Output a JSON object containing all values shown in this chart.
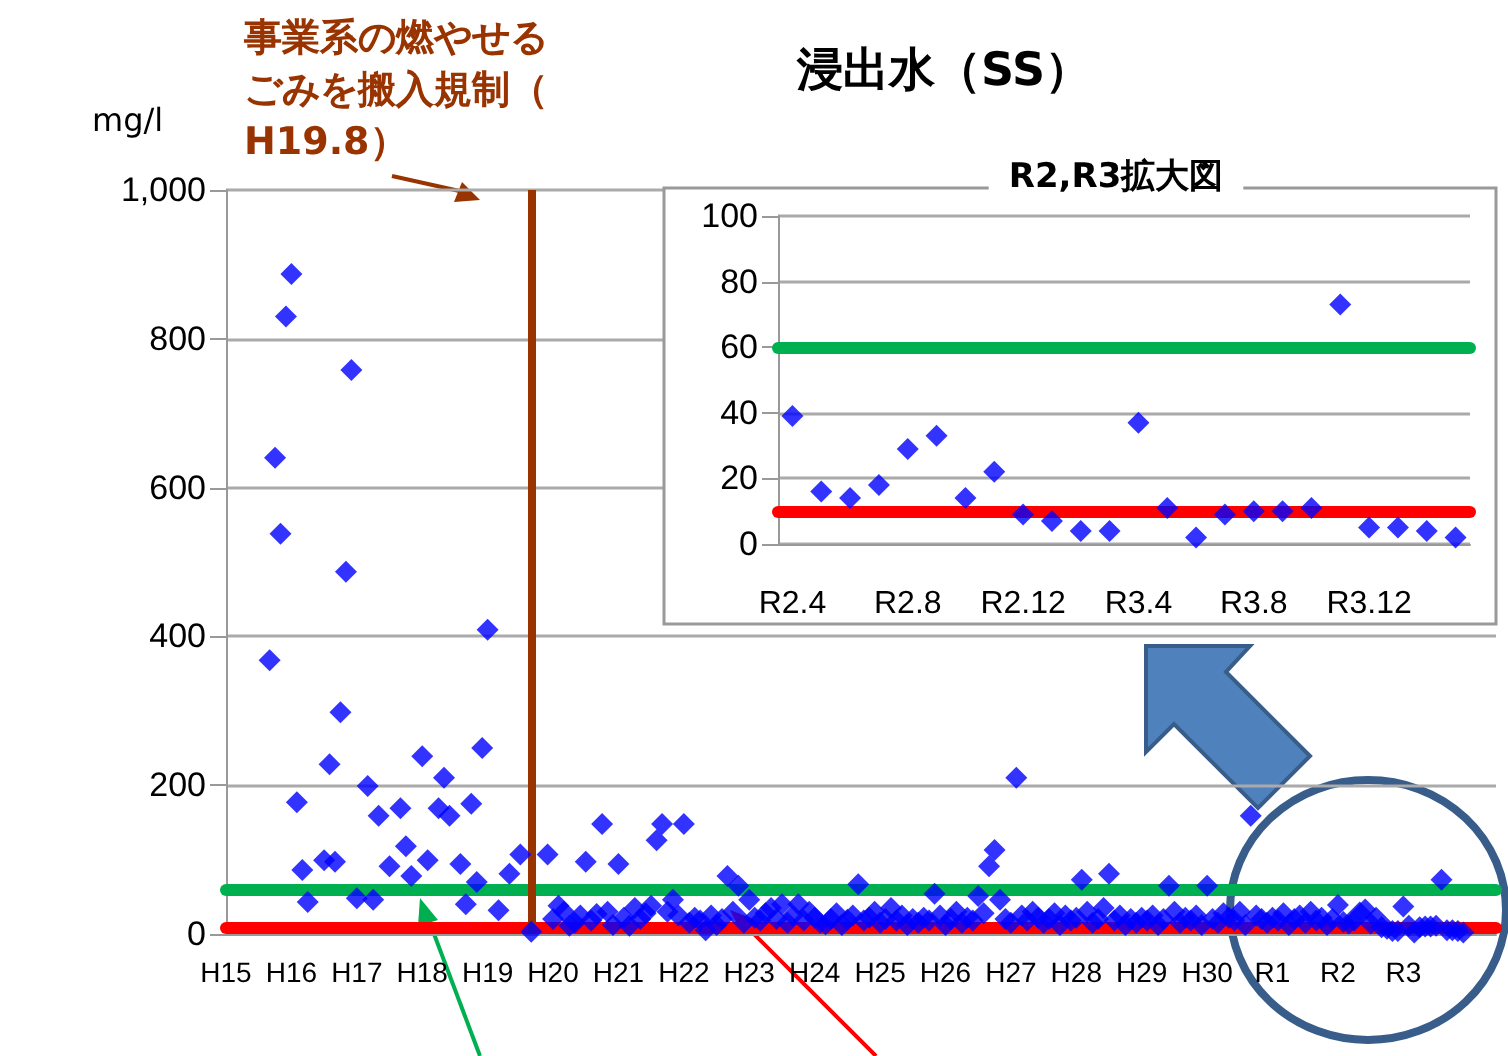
{
  "chart_data": [
    {
      "type": "scatter",
      "title": "浸出水（SS）",
      "ylabel": "mg/l",
      "marker": "diamond",
      "grid": "y",
      "categories": [
        "H15",
        null,
        null,
        null,
        null,
        null,
        null,
        null,
        null,
        null,
        null,
        null,
        "H16",
        null,
        null,
        null,
        null,
        null,
        null,
        null,
        null,
        null,
        null,
        null,
        "H17",
        null,
        null,
        null,
        null,
        null,
        null,
        null,
        null,
        null,
        null,
        null,
        "H18",
        null,
        null,
        null,
        null,
        null,
        null,
        null,
        null,
        null,
        null,
        null,
        "H19",
        null,
        null,
        null,
        null,
        null,
        null,
        null,
        null,
        null,
        null,
        null,
        "H20",
        null,
        null,
        null,
        null,
        null,
        null,
        null,
        null,
        null,
        null,
        null,
        "H21",
        null,
        null,
        null,
        null,
        null,
        null,
        null,
        null,
        null,
        null,
        null,
        "H22",
        null,
        null,
        null,
        null,
        null,
        null,
        null,
        null,
        null,
        null,
        null,
        "H23",
        null,
        null,
        null,
        null,
        null,
        null,
        null,
        null,
        null,
        null,
        null,
        "H24",
        null,
        null,
        null,
        null,
        null,
        null,
        null,
        null,
        null,
        null,
        null,
        "H25",
        null,
        null,
        null,
        null,
        null,
        null,
        null,
        null,
        null,
        null,
        null,
        "H26",
        null,
        null,
        null,
        null,
        null,
        null,
        null,
        null,
        null,
        null,
        null,
        "H27",
        null,
        null,
        null,
        null,
        null,
        null,
        null,
        null,
        null,
        null,
        null,
        "H28",
        null,
        null,
        null,
        null,
        null,
        null,
        null,
        null,
        null,
        null,
        null,
        "H29",
        null,
        null,
        null,
        null,
        null,
        null,
        null,
        null,
        null,
        null,
        null,
        "H30",
        null,
        null,
        null,
        null,
        null,
        null,
        null,
        null,
        null,
        null,
        null,
        "R1",
        null,
        null,
        null,
        null,
        null,
        null,
        null,
        null,
        null,
        null,
        null,
        "R2",
        null,
        null,
        null,
        null,
        null,
        null,
        null,
        null,
        null,
        null,
        null,
        "R3",
        null,
        null,
        null,
        null,
        null,
        null,
        null,
        null,
        null,
        null,
        null,
        null,
        null,
        null,
        null,
        null,
        null
      ],
      "ylim": [
        0,
        1000
      ],
      "yticks": [
        0,
        200,
        400,
        600,
        800,
        {
          "value": 1000,
          "label": "1,000"
        }
      ],
      "series": [
        {
          "color": "#0000ff",
          "values": [
            null,
            null,
            null,
            null,
            null,
            null,
            null,
            null,
            368,
            640,
            538,
            830,
            887,
            177,
            86,
            43,
            null,
            null,
            99,
            228,
            97,
            298,
            487,
            758,
            48,
            null,
            199,
            46,
            159,
            null,
            91,
            null,
            169,
            118,
            78,
            null,
            239,
            99,
            null,
            169,
            210,
            159,
            null,
            94,
            40,
            175,
            70,
            250,
            409,
            null,
            32,
            null,
            81,
            null,
            107,
            null,
            3,
            null,
            null,
            107,
            20,
            38,
            30,
            11,
            15,
            25,
            97,
            18,
            27,
            148,
            30,
            12,
            94,
            22,
            11,
            35,
            20,
            28,
            38,
            126,
            148,
            30,
            46,
            25,
            148,
            15,
            22,
            18,
            5,
            25,
            12,
            20,
            78,
            30,
            65,
            15,
            46,
            22,
            18,
            28,
            35,
            20,
            40,
            15,
            25,
            40,
            18,
            30,
            22,
            15,
            13,
            20,
            28,
            12,
            19,
            25,
            67,
            18,
            22,
            30,
            15,
            20,
            35,
            18,
            25,
            12,
            20,
            15,
            22,
            18,
            54,
            25,
            12,
            20,
            30,
            15,
            22,
            18,
            51,
            28,
            91,
            113,
            46,
            20,
            15,
            210,
            25,
            18,
            30,
            22,
            15,
            20,
            28,
            12,
            25,
            18,
            22,
            73,
            30,
            15,
            20,
            35,
            81,
            18,
            25,
            12,
            20,
            15,
            22,
            18,
            25,
            12,
            20,
            65,
            30,
            15,
            22,
            18,
            25,
            12,
            65,
            20,
            15,
            28,
            22,
            18,
            30,
            12,
            159,
            25,
            20,
            15,
            22,
            18,
            28,
            12,
            20,
            25,
            15,
            30,
            18,
            22,
            12,
            20,
            39,
            16,
            14,
            18,
            29,
            33,
            14,
            22,
            9,
            7,
            4,
            4,
            37,
            11,
            2,
            9,
            10,
            10,
            11,
            73,
            5,
            5,
            4,
            2,
            null,
            null,
            null,
            null,
            null,
            null
          ]
        }
      ],
      "annotations": [
        "事業系の燃やせるごみを搬入規制（H19.8）"
      ],
      "ref_lines": [
        {
          "axis": "y",
          "value": 60,
          "color": "#00b050"
        },
        {
          "axis": "y",
          "value": 10,
          "color": "#ff0000"
        }
      ]
    },
    {
      "type": "scatter",
      "title": "R2,R3拡大図",
      "marker": "diamond",
      "grid": "y",
      "categories": [
        "R2.4",
        null,
        null,
        null,
        "R2.8",
        null,
        null,
        null,
        "R2.12",
        null,
        null,
        null,
        "R3.4",
        null,
        null,
        null,
        "R3.8",
        null,
        null,
        null,
        "R3.12",
        null,
        null,
        null
      ],
      "ylim": [
        0,
        100
      ],
      "yticks": [
        0,
        20,
        40,
        60,
        80,
        100
      ],
      "series": [
        {
          "color": "#0000ff",
          "values": [
            39,
            16,
            14,
            18,
            29,
            33,
            14,
            22,
            9,
            7,
            4,
            4,
            37,
            11,
            2,
            9,
            10,
            10,
            11,
            73,
            5,
            5,
            4,
            2
          ]
        }
      ],
      "ref_lines": [
        {
          "axis": "y",
          "value": 60,
          "color": "#00b050"
        },
        {
          "axis": "y",
          "value": 10,
          "color": "#ff0000"
        }
      ]
    }
  ]
}
